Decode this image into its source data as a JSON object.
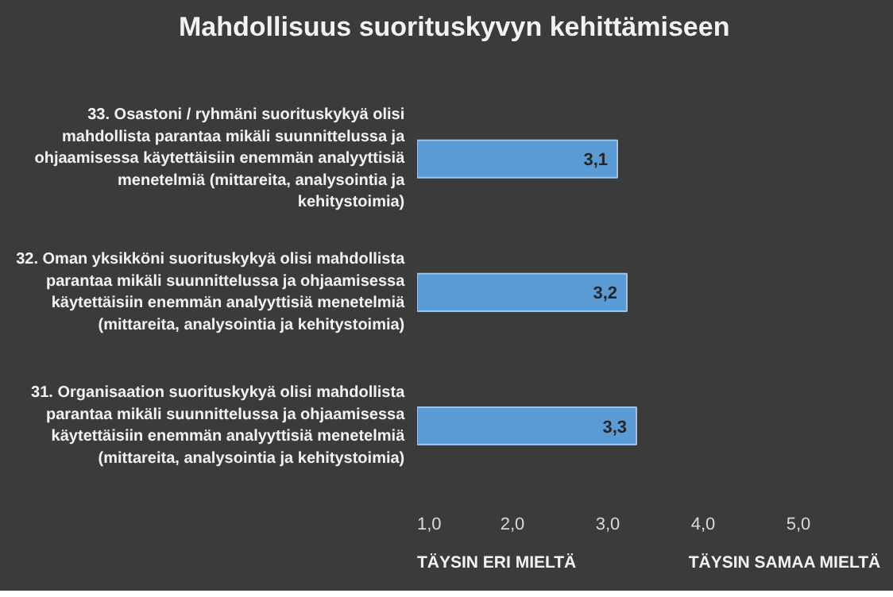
{
  "chart_data": {
    "type": "bar",
    "orientation": "horizontal",
    "title": "Mahdollisuus suorituskyvyn kehittämiseen",
    "categories": [
      "33. Osastoni / ryhmäni suorituskykyä olisi mahdollista parantaa mikäli suunnittelussa ja ohjaamisessa käytettäisiin enemmän analyyttisiä menetelmiä (mittareita, analysointia ja kehitystoimia)",
      "32. Oman yksikköni suorituskykyä olisi mahdollista parantaa mikäli suunnittelussa ja ohjaamisessa käytettäisiin enemmän analyyttisiä menetelmiä (mittareita, analysointia ja kehitystoimia)",
      "31. Organisaation suorituskykyä olisi mahdollista parantaa mikäli suunnittelussa ja ohjaamisessa käytettäisiin enemmän analyyttisiä menetelmiä (mittareita, analysointia ja kehitystoimia)"
    ],
    "values": [
      3.1,
      3.2,
      3.3
    ],
    "value_labels": [
      "3,1",
      "3,2",
      "3,3"
    ],
    "color": "#5b9bd5",
    "xlim": [
      1,
      5
    ],
    "xticks": [
      {
        "value": 1,
        "label": "1,0"
      },
      {
        "value": 2,
        "label": "2,0"
      },
      {
        "value": 3,
        "label": "3,0"
      },
      {
        "value": 4,
        "label": "4,0"
      },
      {
        "value": 5,
        "label": "5,0"
      }
    ],
    "annotations": [
      "TÄYSIN ERI MIELTÄ",
      "TÄYSIN SAMAA MIELTÄ"
    ],
    "grid": false
  }
}
